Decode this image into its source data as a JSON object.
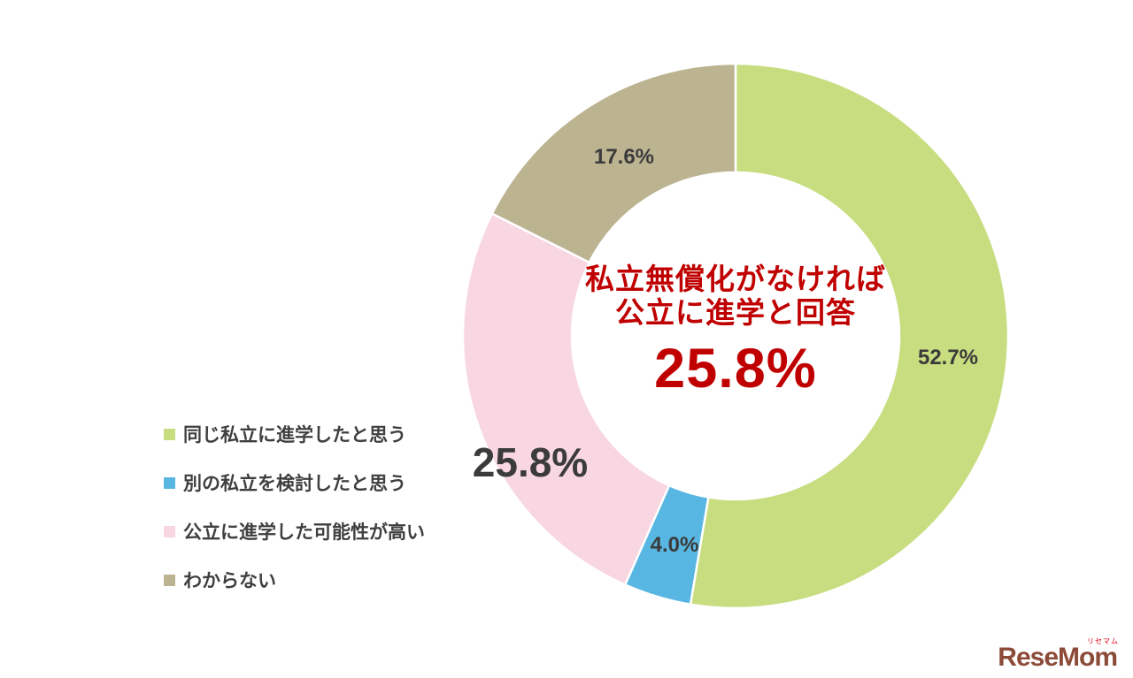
{
  "chart_data": {
    "type": "pie",
    "subtype": "donut",
    "title": "",
    "legend_position": "left",
    "start_angle_deg": 0,
    "direction": "clockwise",
    "center_text": {
      "line1": "私立無償化がなければ",
      "line2": "公立に進学と回答",
      "value": "25.8%",
      "color": "#c00000"
    },
    "segments": [
      {
        "label": "同じ私立に進学したと思う",
        "value": 52.7,
        "display": "52.7%",
        "color": "#c7dd7f"
      },
      {
        "label": "別の私立を検討したと思う",
        "value": 4.0,
        "display": "4.0%",
        "color": "#58b7e2"
      },
      {
        "label": "公立に進学した可能性が高い",
        "value": 25.8,
        "display": "25.8%",
        "color": "#f8d6e2"
      },
      {
        "label": "わからない",
        "value": 17.6,
        "display": "17.6%",
        "color": "#bcb391"
      }
    ]
  },
  "logo": {
    "text": "ReseMom",
    "ruby": "リセマム"
  }
}
